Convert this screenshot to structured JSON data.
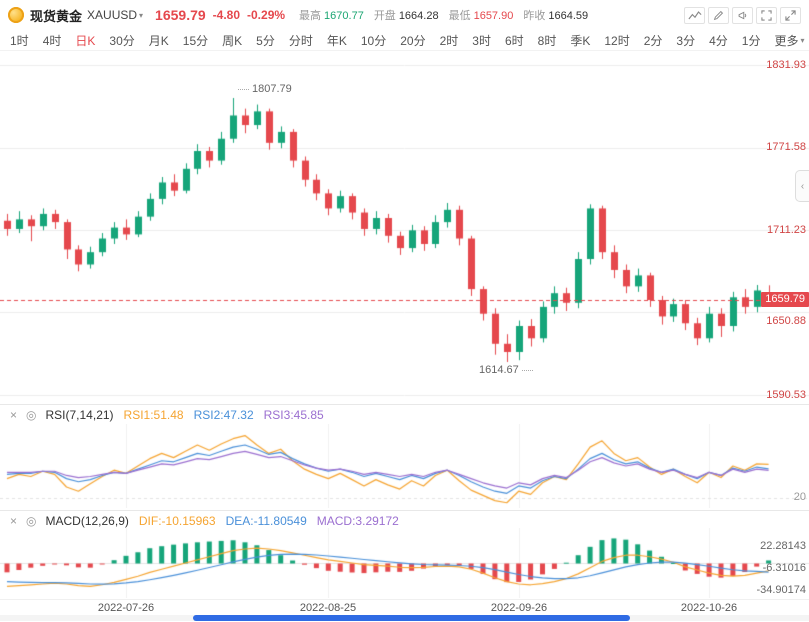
{
  "header": {
    "symbol_name": "现货黄金",
    "symbol_code": "XAUUSD",
    "price": "1659.79",
    "change": "-4.80",
    "change_pct": "-0.29%",
    "stats": [
      {
        "label": "最高",
        "value": "1670.77",
        "color": "#1ca673"
      },
      {
        "label": "开盘",
        "value": "1664.28",
        "color": "#333333"
      },
      {
        "label": "最低",
        "value": "1657.90",
        "color": "#e5484d"
      },
      {
        "label": "昨收",
        "value": "1664.59",
        "color": "#333333"
      }
    ]
  },
  "toolbar": {
    "active_index": 2,
    "items": [
      {
        "label": "1时"
      },
      {
        "label": "4时"
      },
      {
        "label": "日K",
        "active": true
      },
      {
        "label": "30分"
      },
      {
        "label": "月K"
      },
      {
        "label": "15分"
      },
      {
        "label": "周K"
      },
      {
        "label": "5分"
      },
      {
        "label": "分时"
      },
      {
        "label": "年K"
      },
      {
        "label": "10分"
      },
      {
        "label": "20分"
      },
      {
        "label": "2时"
      },
      {
        "label": "3时"
      },
      {
        "label": "6时"
      },
      {
        "label": "8时"
      },
      {
        "label": "季K"
      },
      {
        "label": "12时"
      },
      {
        "label": "2分"
      },
      {
        "label": "3分"
      },
      {
        "label": "4分"
      },
      {
        "label": "1分"
      },
      {
        "label": "更多",
        "caret": true
      }
    ]
  },
  "chart_data": [
    {
      "type": "candlestick",
      "symbol": "XAUUSD",
      "timeframe": "日K",
      "current_price": 1659.79,
      "high_label": "1807.79",
      "low_label": "1614.67",
      "colors": {
        "up": "#16a57a",
        "down": "#e5484d"
      },
      "y_axis": {
        "min": 1590.53,
        "max": 1831.93,
        "labels": [
          "1831.93",
          "1771.58",
          "1711.23",
          "1650.88",
          "1590.53"
        ]
      },
      "x_ticks": [
        {
          "index": 10,
          "label": "2022-07-26"
        },
        {
          "index": 27,
          "label": "2022-08-25"
        },
        {
          "index": 43,
          "label": "2022-09-26"
        },
        {
          "index": 59,
          "label": "2022-10-26"
        }
      ],
      "candles": [
        [
          1718,
          1723,
          1707,
          1712
        ],
        [
          1712,
          1725,
          1709,
          1719
        ],
        [
          1719,
          1722,
          1703,
          1714
        ],
        [
          1714,
          1727,
          1711,
          1723
        ],
        [
          1723,
          1726,
          1712,
          1717
        ],
        [
          1717,
          1719,
          1690,
          1697
        ],
        [
          1697,
          1700,
          1681,
          1686
        ],
        [
          1686,
          1699,
          1683,
          1695
        ],
        [
          1695,
          1709,
          1692,
          1705
        ],
        [
          1705,
          1717,
          1701,
          1713
        ],
        [
          1713,
          1719,
          1704,
          1708
        ],
        [
          1708,
          1725,
          1706,
          1721
        ],
        [
          1721,
          1738,
          1718,
          1734
        ],
        [
          1734,
          1750,
          1730,
          1746
        ],
        [
          1746,
          1752,
          1736,
          1740
        ],
        [
          1740,
          1760,
          1738,
          1756
        ],
        [
          1756,
          1774,
          1752,
          1769
        ],
        [
          1769,
          1772,
          1757,
          1762
        ],
        [
          1762,
          1783,
          1759,
          1778
        ],
        [
          1778,
          1807.79,
          1775,
          1795
        ],
        [
          1795,
          1800,
          1782,
          1788
        ],
        [
          1788,
          1803,
          1785,
          1798
        ],
        [
          1798,
          1800,
          1770,
          1775
        ],
        [
          1775,
          1787,
          1771,
          1783
        ],
        [
          1783,
          1785,
          1757,
          1762
        ],
        [
          1762,
          1765,
          1743,
          1748
        ],
        [
          1748,
          1752,
          1733,
          1738
        ],
        [
          1738,
          1741,
          1722,
          1727
        ],
        [
          1727,
          1740,
          1724,
          1736
        ],
        [
          1736,
          1738,
          1719,
          1724
        ],
        [
          1724,
          1727,
          1707,
          1712
        ],
        [
          1712,
          1725,
          1708,
          1720
        ],
        [
          1720,
          1723,
          1702,
          1707
        ],
        [
          1707,
          1710,
          1693,
          1698
        ],
        [
          1698,
          1715,
          1695,
          1711
        ],
        [
          1711,
          1714,
          1696,
          1701
        ],
        [
          1701,
          1722,
          1698,
          1717
        ],
        [
          1717,
          1731,
          1713,
          1726
        ],
        [
          1726,
          1729,
          1700,
          1705
        ],
        [
          1705,
          1707,
          1663,
          1668
        ],
        [
          1668,
          1670,
          1645,
          1650
        ],
        [
          1650,
          1654,
          1620,
          1628
        ],
        [
          1628,
          1635,
          1614.67,
          1622
        ],
        [
          1622,
          1645,
          1616,
          1641
        ],
        [
          1641,
          1646,
          1626,
          1632
        ],
        [
          1632,
          1659,
          1629,
          1655
        ],
        [
          1655,
          1670,
          1650,
          1665
        ],
        [
          1665,
          1669,
          1652,
          1658
        ],
        [
          1658,
          1695,
          1654,
          1690
        ],
        [
          1690,
          1730,
          1686,
          1727
        ],
        [
          1727,
          1729,
          1690,
          1695
        ],
        [
          1695,
          1700,
          1676,
          1682
        ],
        [
          1682,
          1686,
          1665,
          1670
        ],
        [
          1670,
          1683,
          1666,
          1678
        ],
        [
          1678,
          1680,
          1655,
          1660
        ],
        [
          1660,
          1663,
          1642,
          1648
        ],
        [
          1648,
          1661,
          1644,
          1657
        ],
        [
          1657,
          1660,
          1638,
          1643
        ],
        [
          1643,
          1647,
          1627,
          1632
        ],
        [
          1632,
          1655,
          1629,
          1650
        ],
        [
          1650,
          1654,
          1633,
          1641
        ],
        [
          1641,
          1666,
          1637,
          1662
        ],
        [
          1662,
          1668,
          1650,
          1655
        ],
        [
          1655,
          1671,
          1651,
          1667
        ],
        [
          1664.28,
          1670.77,
          1657.9,
          1659.79
        ]
      ]
    },
    {
      "type": "line",
      "title": "RSI(7,14,21)",
      "legend": [
        "RSI1:51.48",
        "RSI2:47.32",
        "RSI3:45.85"
      ],
      "axis_label": "20",
      "range": [
        10,
        90
      ],
      "grid_level": 20,
      "series": [
        {
          "name": "RSI1",
          "color": "#f5a431",
          "values": [
            38,
            42,
            40,
            45,
            42,
            30,
            26,
            33,
            40,
            46,
            43,
            50,
            57,
            62,
            58,
            64,
            70,
            65,
            71,
            76,
            79,
            70,
            62,
            66,
            55,
            47,
            42,
            38,
            43,
            37,
            31,
            37,
            32,
            28,
            36,
            31,
            41,
            46,
            36,
            27,
            22,
            17,
            15,
            26,
            23,
            34,
            40,
            37,
            52,
            68,
            74,
            62,
            55,
            58,
            49,
            42,
            47,
            40,
            34,
            44,
            39,
            50,
            46,
            52,
            51.48
          ]
        },
        {
          "name": "RSI2",
          "color": "#4a90d9",
          "values": [
            42,
            43,
            43,
            45,
            44,
            38,
            35,
            37,
            41,
            44,
            43,
            47,
            51,
            55,
            54,
            58,
            62,
            60,
            64,
            68,
            70,
            66,
            61,
            63,
            57,
            52,
            48,
            45,
            47,
            44,
            40,
            43,
            40,
            37,
            41,
            38,
            43,
            46,
            41,
            35,
            30,
            26,
            24,
            31,
            29,
            36,
            40,
            38,
            47,
            57,
            62,
            56,
            52,
            54,
            48,
            44,
            47,
            42,
            38,
            44,
            41,
            48,
            45,
            49,
            47.32
          ]
        },
        {
          "name": "RSI3",
          "color": "#9b6fd0",
          "values": [
            44,
            44,
            44,
            45,
            45,
            41,
            39,
            40,
            42,
            44,
            43,
            46,
            49,
            52,
            51,
            54,
            57,
            56,
            59,
            62,
            64,
            61,
            58,
            59,
            55,
            51,
            48,
            46,
            47,
            45,
            42,
            44,
            42,
            40,
            42,
            40,
            44,
            46,
            42,
            38,
            34,
            31,
            29,
            34,
            32,
            38,
            41,
            39,
            46,
            54,
            58,
            53,
            50,
            52,
            47,
            44,
            46,
            42,
            39,
            44,
            41,
            47,
            44,
            47,
            45.85
          ]
        }
      ]
    },
    {
      "type": "bar+line",
      "title": "MACD(12,26,9)",
      "legend": [
        "DIF:-10.15963",
        "DEA:-11.80549",
        "MACD:3.29172"
      ],
      "axis_labels": [
        "22.28143",
        "-6.31016",
        "-34.90174"
      ],
      "range": [
        -45,
        45
      ],
      "colors": {
        "dif": "#f5a431",
        "dea": "#4a90d9",
        "hist_up": "#16a57a",
        "hist_down": "#e5484d"
      },
      "dif": [
        -30,
        -29,
        -28,
        -27,
        -26,
        -27,
        -29,
        -30,
        -28,
        -25,
        -21,
        -17,
        -12,
        -8,
        -4,
        0,
        4,
        8,
        12,
        16,
        18,
        19,
        18,
        16,
        13,
        10,
        7,
        4,
        2,
        0,
        -2,
        -3,
        -4,
        -5.5,
        -6,
        -5.5,
        -4.5,
        -4,
        -5,
        -8,
        -13,
        -19,
        -24,
        -27,
        -28,
        -26.5,
        -24,
        -20,
        -14,
        -6,
        2,
        7,
        10,
        10,
        8,
        5,
        1,
        -5,
        -9,
        -13,
        -16,
        -17,
        -16,
        -13,
        -10.16
      ],
      "dea": [
        -24,
        -24.5,
        -25,
        -25.2,
        -25.3,
        -25.5,
        -26.2,
        -27,
        -27.2,
        -26.8,
        -25.6,
        -23.9,
        -21.5,
        -18.8,
        -15.8,
        -12.6,
        -9.3,
        -5.8,
        -2.2,
        1.4,
        4.7,
        7.6,
        9.7,
        11,
        11.4,
        11.1,
        10.3,
        9,
        7.6,
        6.1,
        4.5,
        3,
        1.6,
        0.2,
        -1,
        -1.9,
        -2.4,
        -2.7,
        -3.2,
        -4.2,
        -6,
        -8.6,
        -11.7,
        -14.8,
        -17.4,
        -19.2,
        -20.2,
        -20.2,
        -19,
        -16.4,
        -12.7,
        -8.8,
        -5,
        -2,
        0,
        1,
        1,
        -0.2,
        -2,
        -4.2,
        -6.6,
        -8.7,
        -10.2,
        -10.7,
        -11.81
      ]
    }
  ]
}
